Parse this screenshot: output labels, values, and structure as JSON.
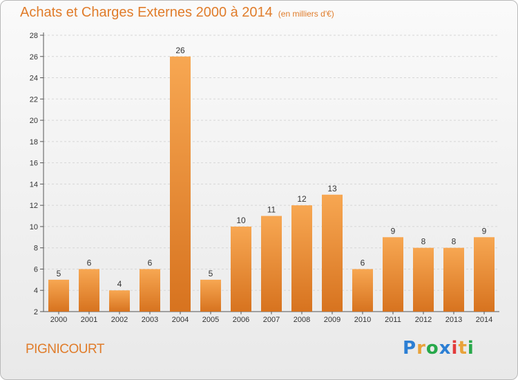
{
  "header": {
    "title": "Achats et Charges Externes 2000 à 2014",
    "unit": "(en milliers d'€)"
  },
  "footer": {
    "commune": "PIGNICOURT",
    "logo_letters": [
      "P",
      "r",
      "o",
      "x",
      "i",
      "t",
      "i"
    ],
    "logo_colors": [
      "#2c7fd4",
      "#e8a23a",
      "#27a84a",
      "#2c7fd4",
      "#e23b3b",
      "#e8a23a",
      "#27a84a"
    ]
  },
  "colors": {
    "bar_top": "#f7a752",
    "bar_bottom": "#d7731f",
    "accent": "#e07c2a"
  },
  "chart_data": {
    "type": "bar",
    "title": "Achats et Charges Externes 2000 à 2014",
    "subtitle": "(en milliers d'€)",
    "categories": [
      "2000",
      "2001",
      "2002",
      "2003",
      "2004",
      "2005",
      "2006",
      "2007",
      "2008",
      "2009",
      "2010",
      "2011",
      "2012",
      "2013",
      "2014"
    ],
    "values": [
      5,
      6,
      4,
      6,
      26,
      5,
      10,
      11,
      12,
      13,
      6,
      9,
      8,
      8,
      9
    ],
    "ylim": [
      2,
      28
    ],
    "yticks": [
      2,
      4,
      6,
      8,
      10,
      12,
      14,
      16,
      18,
      20,
      22,
      24,
      26,
      28
    ],
    "grid": true,
    "data_labels": true
  }
}
